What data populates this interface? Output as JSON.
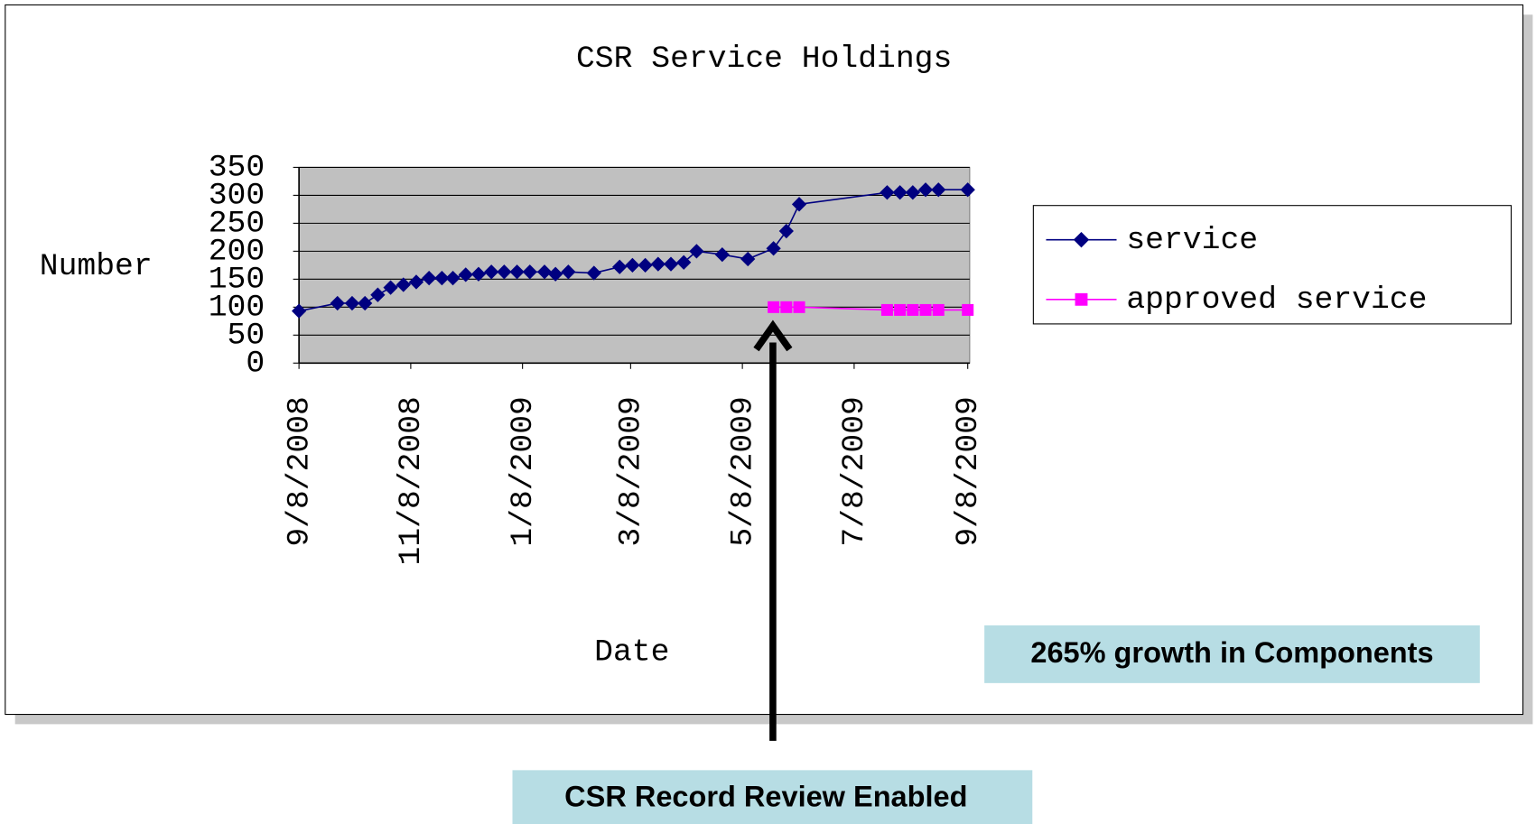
{
  "chart_data": {
    "type": "line",
    "title": "CSR Service Holdings",
    "x_label": "Date",
    "y_label": "Number",
    "ylim": [
      0,
      350
    ],
    "yticks": [
      0,
      50,
      100,
      150,
      200,
      250,
      300,
      350
    ],
    "xlim": [
      "2008-09-08",
      "2009-09-08"
    ],
    "xticks": [
      {
        "value": "2008-09-08",
        "label": "9/8/2008"
      },
      {
        "value": "2008-11-08",
        "label": "11/8/2008"
      },
      {
        "value": "2009-01-08",
        "label": "1/8/2009"
      },
      {
        "value": "2009-03-08",
        "label": "3/8/2009"
      },
      {
        "value": "2009-05-08",
        "label": "5/8/2009"
      },
      {
        "value": "2009-07-08",
        "label": "7/8/2009"
      },
      {
        "value": "2009-09-08",
        "label": "9/8/2009"
      }
    ],
    "grid": true,
    "legend": "right",
    "series": [
      {
        "name": "service",
        "color": "#000080",
        "marker": "diamond",
        "x": [
          "2008-09-08",
          "2008-09-29",
          "2008-10-07",
          "2008-10-14",
          "2008-10-21",
          "2008-10-28",
          "2008-11-04",
          "2008-11-11",
          "2008-11-18",
          "2008-11-25",
          "2008-12-01",
          "2008-12-08",
          "2008-12-15",
          "2008-12-22",
          "2008-12-29",
          "2009-01-05",
          "2009-01-12",
          "2009-01-20",
          "2009-01-26",
          "2009-02-02",
          "2009-02-16",
          "2009-03-02",
          "2009-03-09",
          "2009-03-16",
          "2009-03-23",
          "2009-03-30",
          "2009-04-06",
          "2009-04-13",
          "2009-04-27",
          "2009-05-11",
          "2009-05-25",
          "2009-06-01",
          "2009-06-08",
          "2009-07-26",
          "2009-08-02",
          "2009-08-09",
          "2009-08-16",
          "2009-08-23",
          "2009-09-08"
        ],
        "values": [
          93,
          107,
          107,
          107,
          122,
          135,
          140,
          145,
          152,
          152,
          152,
          158,
          159,
          163,
          163,
          163,
          163,
          163,
          159,
          163,
          161,
          172,
          175,
          175,
          177,
          177,
          180,
          200,
          194,
          186,
          205,
          236,
          284,
          305,
          305,
          305,
          310,
          310,
          310
        ]
      },
      {
        "name": "approved service",
        "color": "#ff00ff",
        "marker": "square",
        "x": [
          "2009-05-25",
          "2009-06-01",
          "2009-06-08",
          "2009-07-26",
          "2009-08-02",
          "2009-08-09",
          "2009-08-16",
          "2009-08-23",
          "2009-09-08"
        ],
        "values": [
          100,
          100,
          100,
          95,
          95,
          95,
          95,
          95,
          95
        ]
      }
    ],
    "annotations": [
      "265% growth in Components",
      "CSR Record Review  Enabled"
    ]
  }
}
